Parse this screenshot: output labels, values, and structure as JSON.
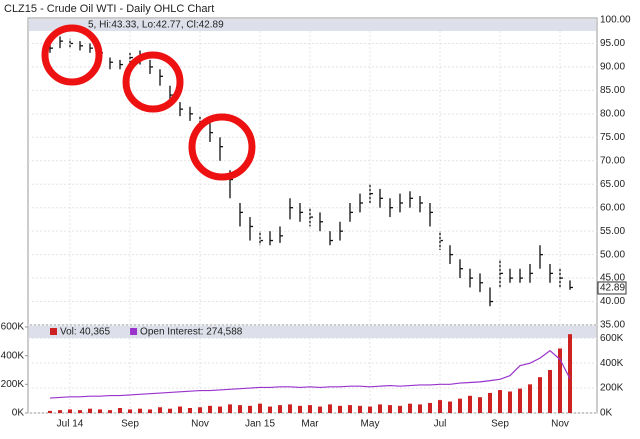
{
  "chart_data": [
    {
      "type": "ohlc",
      "title": "CLZ15 - Crude Oil WTI - Daily OHLC Chart",
      "info": "5, Hi:43.33, Lo:42.77, Cl:42.89",
      "color": "#111111",
      "high": [
        95.5,
        96.5,
        96,
        95.5,
        95,
        94.5,
        92,
        91.5,
        93,
        93.5,
        91.5,
        89.5,
        86,
        82.5,
        81.5,
        79.5,
        78,
        75,
        68,
        61,
        58,
        55,
        55,
        56,
        62,
        61,
        60,
        59,
        55,
        57,
        61,
        63,
        65,
        64,
        62,
        63,
        63.5,
        62.5,
        61,
        55,
        52,
        49,
        47,
        46,
        43,
        49,
        47,
        47,
        48,
        52,
        48,
        47,
        44.5
      ],
      "low": [
        93,
        94,
        94,
        93.5,
        93,
        91.5,
        89.5,
        89.5,
        90.5,
        90.5,
        88.5,
        86,
        82,
        79.5,
        78.5,
        76.5,
        74,
        70,
        62,
        56,
        53,
        52,
        52,
        52.5,
        57.5,
        57,
        56,
        55,
        52,
        53,
        57,
        59,
        61,
        60,
        58,
        59,
        60,
        59,
        56,
        51,
        48,
        45,
        43,
        42,
        39,
        43,
        44,
        44,
        44,
        47,
        44,
        43,
        42.5
      ],
      "close": [
        94,
        95.5,
        95,
        94.5,
        94,
        93,
        91,
        90.5,
        92,
        92,
        90,
        88,
        84,
        81,
        80,
        78,
        76,
        73,
        66,
        59,
        56,
        53,
        53,
        54,
        60,
        59,
        58,
        57,
        53,
        55,
        59,
        61,
        63,
        62,
        60,
        61,
        62,
        61,
        59,
        53,
        50,
        47,
        45,
        44,
        40,
        46,
        45,
        45,
        46,
        50,
        46,
        45,
        43
      ],
      "last_value": 42.89,
      "ylim": [
        35,
        100
      ],
      "yticks": [
        {
          "value": 100,
          "label": "100.00"
        },
        {
          "value": 95,
          "label": "95.00"
        },
        {
          "value": 90,
          "label": "90.00"
        },
        {
          "value": 85,
          "label": "85.00"
        },
        {
          "value": 80,
          "label": "80.00"
        },
        {
          "value": 75,
          "label": "75.00"
        },
        {
          "value": 70,
          "label": "70.00"
        },
        {
          "value": 65,
          "label": "65.00"
        },
        {
          "value": 60,
          "label": "60.00"
        },
        {
          "value": 55,
          "label": "55.00"
        },
        {
          "value": 50,
          "label": "50.00"
        },
        {
          "value": 45,
          "label": "45.00"
        },
        {
          "value": 40,
          "label": "40.00"
        },
        {
          "value": 35,
          "label": "35.00"
        }
      ],
      "grid": true
    },
    {
      "type": "bar",
      "categories": [
        null,
        null,
        "Jul 14",
        null,
        null,
        null,
        null,
        null,
        "Sep",
        null,
        null,
        null,
        null,
        null,
        null,
        "Nov",
        null,
        null,
        null,
        null,
        null,
        "Jan 15",
        null,
        null,
        null,
        null,
        "Mar",
        null,
        null,
        null,
        null,
        null,
        "May",
        null,
        null,
        null,
        null,
        null,
        null,
        "Jul",
        null,
        null,
        null,
        null,
        null,
        "Sep",
        null,
        null,
        null,
        null,
        null,
        "Nov",
        null
      ],
      "series": [
        {
          "name": "Vol: 40,365",
          "color": "#cc2222",
          "values": [
            15,
            20,
            25,
            20,
            30,
            25,
            20,
            35,
            25,
            30,
            25,
            40,
            30,
            45,
            35,
            40,
            50,
            45,
            60,
            55,
            50,
            65,
            45,
            55,
            60,
            50,
            55,
            45,
            60,
            50,
            55,
            50,
            45,
            60,
            55,
            50,
            65,
            60,
            70,
            90,
            80,
            100,
            120,
            110,
            140,
            160,
            150,
            170,
            200,
            250,
            300,
            450,
            550
          ]
        },
        {
          "name": "Open Interest: 274,588",
          "color": "#9933cc",
          "axis": "y2",
          "values": [
            120,
            125,
            130,
            130,
            135,
            135,
            140,
            140,
            145,
            150,
            155,
            160,
            165,
            170,
            175,
            180,
            180,
            185,
            190,
            195,
            200,
            205,
            205,
            210,
            210,
            205,
            210,
            205,
            210,
            210,
            215,
            215,
            210,
            215,
            220,
            215,
            220,
            225,
            225,
            230,
            230,
            240,
            245,
            250,
            260,
            270,
            300,
            380,
            400,
            440,
            500,
            430,
            275
          ]
        }
      ],
      "ylim": [
        0,
        600
      ],
      "yticks": [
        {
          "value": 0,
          "label": "0K"
        },
        {
          "value": 200,
          "label": "200K"
        },
        {
          "value": 400,
          "label": "400K"
        },
        {
          "value": 600,
          "label": "600K"
        }
      ],
      "y2lim": [
        0,
        690
      ],
      "y2ticks": [
        {
          "value": 0,
          "label": "0K"
        },
        {
          "value": 200,
          "label": "200K"
        },
        {
          "value": 400,
          "label": "400K"
        },
        {
          "value": 600,
          "label": "600K"
        }
      ],
      "grid": true
    }
  ]
}
